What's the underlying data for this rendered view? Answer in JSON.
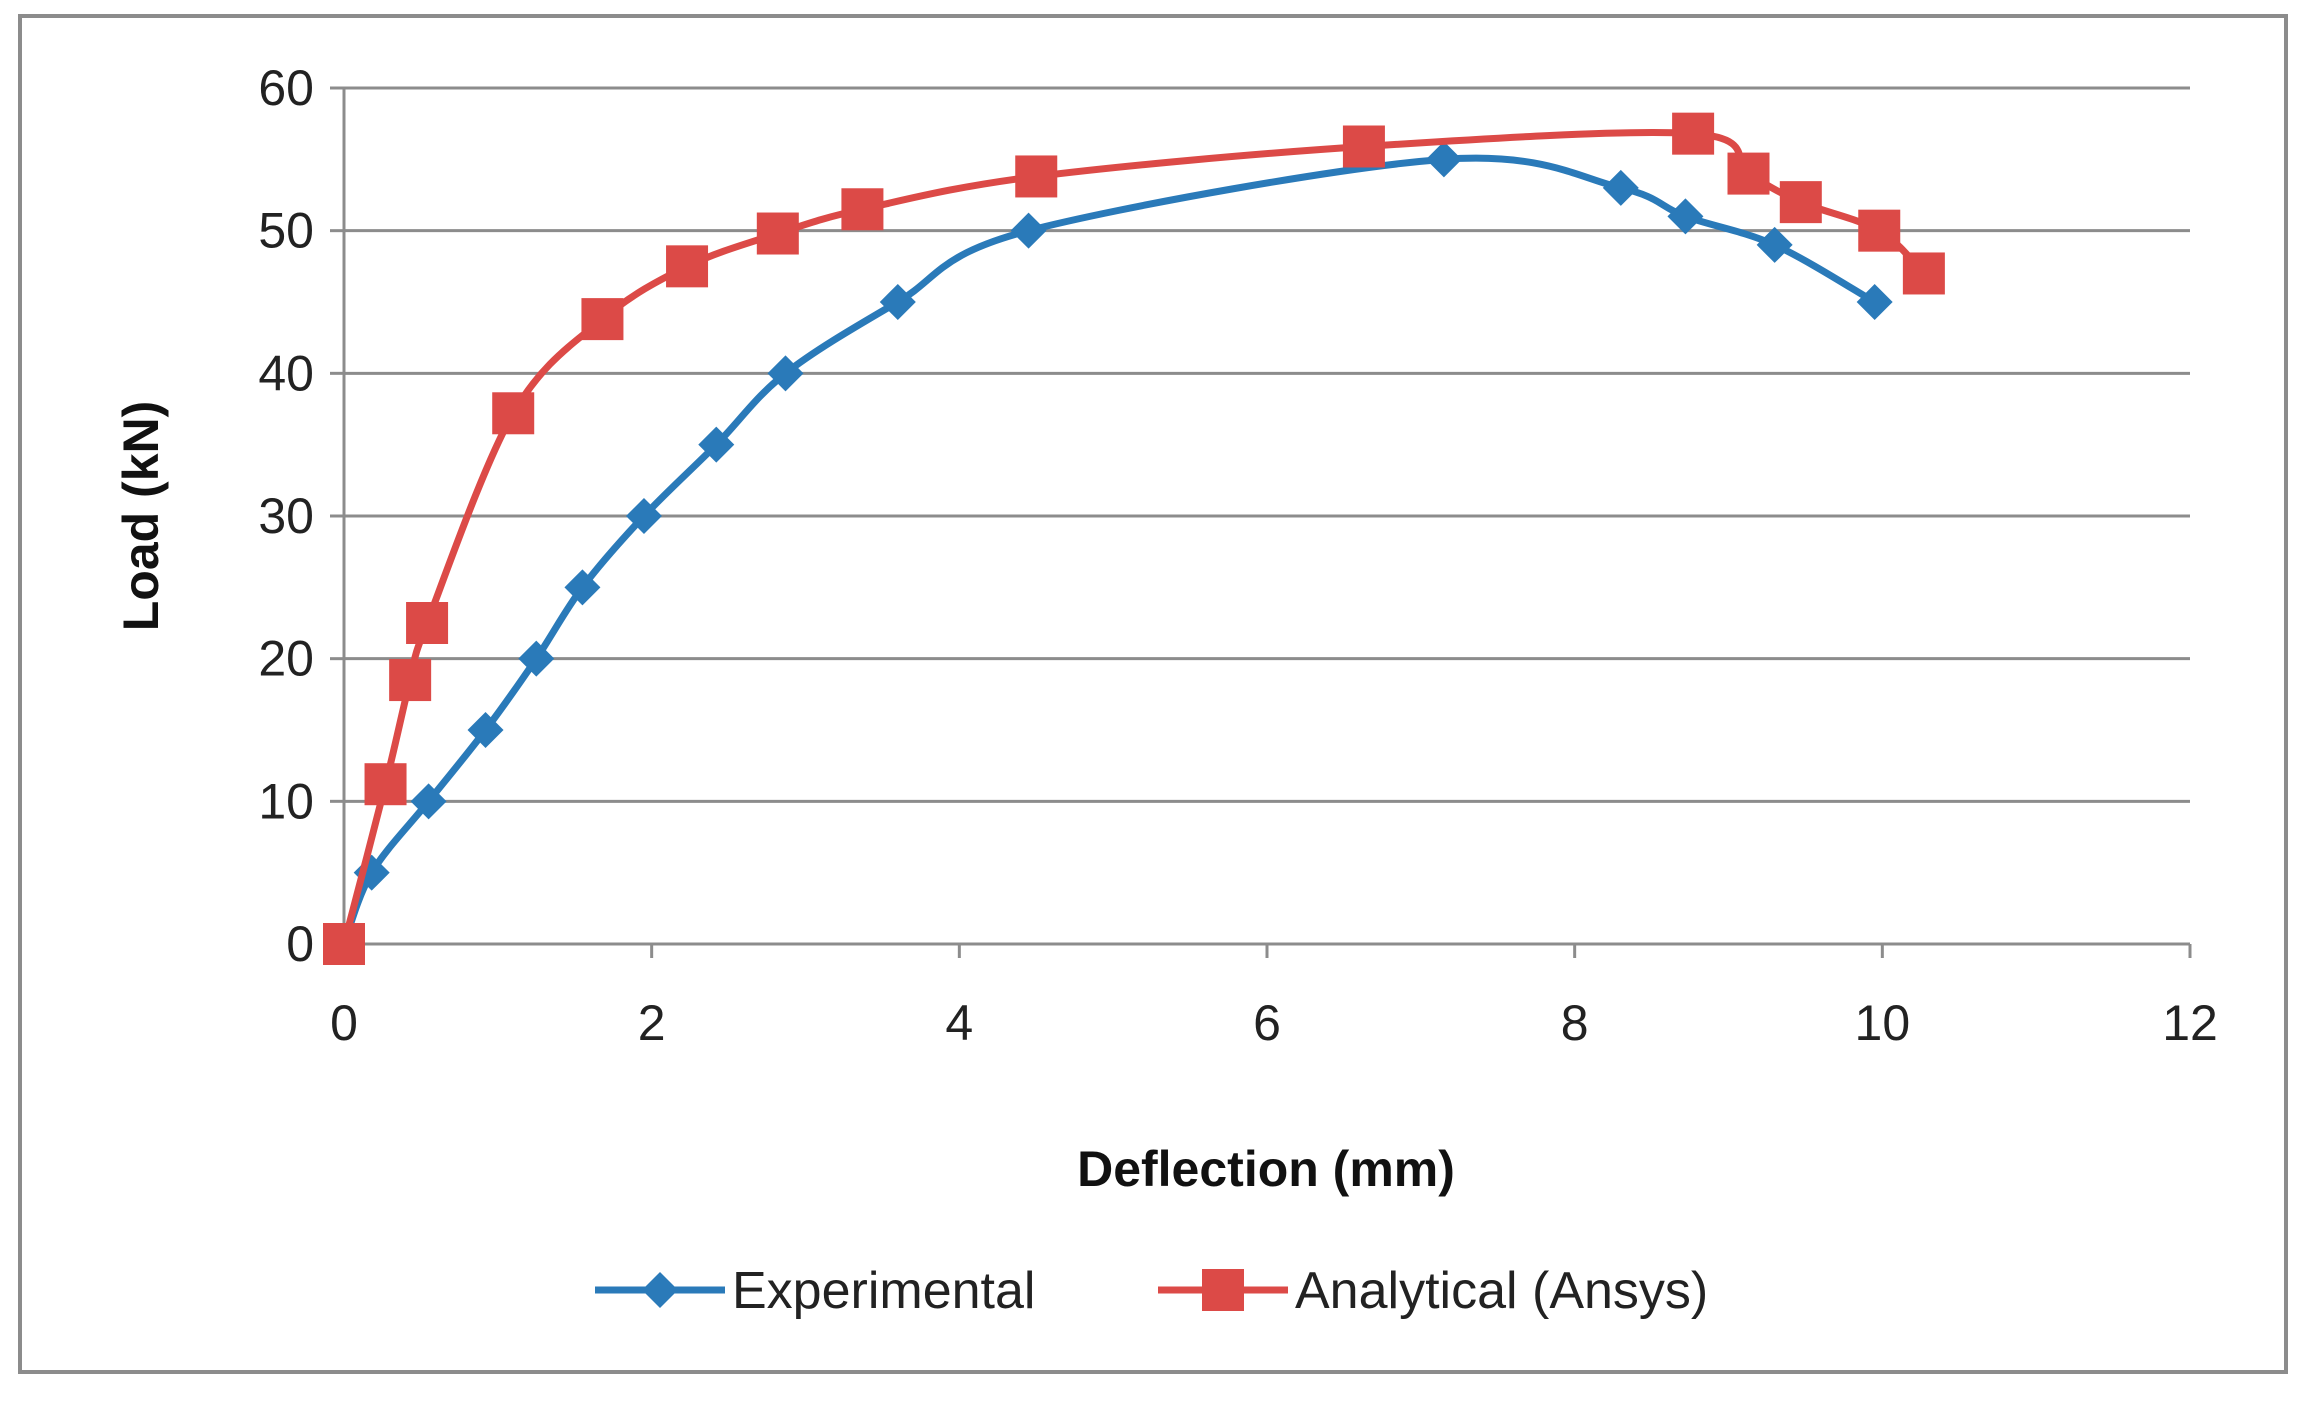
{
  "chart_data": {
    "type": "line",
    "title": "",
    "xlabel": "Deflection (mm)",
    "ylabel": "Load (kN)",
    "xlim": [
      0,
      12
    ],
    "ylim": [
      0,
      60
    ],
    "xticks": [
      "0",
      "2",
      "4",
      "6",
      "8",
      "10",
      "12"
    ],
    "yticks": [
      "0",
      "10",
      "20",
      "30",
      "40",
      "50",
      "60"
    ],
    "grid": "horizontal",
    "legend_position": "bottom",
    "series": [
      {
        "name": "Experimental",
        "color": "#2a7ab9",
        "marker": "diamond",
        "x": [
          0,
          0.18,
          0.55,
          0.92,
          1.25,
          1.55,
          1.95,
          2.42,
          2.87,
          3.6,
          4.45,
          7.15,
          8.3,
          8.72,
          9.3,
          9.95
        ],
        "y": [
          0,
          5,
          10,
          15,
          20,
          25,
          30,
          35,
          40,
          45,
          50,
          55,
          53,
          51,
          49,
          45
        ]
      },
      {
        "name": "Analytical (Ansys)",
        "color": "#dc4a47",
        "marker": "square",
        "x": [
          0,
          0.27,
          0.43,
          0.54,
          1.1,
          1.68,
          2.23,
          2.82,
          3.37,
          4.5,
          6.63,
          8.77,
          9.13,
          9.47,
          9.98,
          10.27
        ],
        "y": [
          0,
          11.2,
          18.5,
          22.5,
          37.2,
          43.8,
          47.5,
          49.8,
          51.5,
          53.8,
          55.9,
          56.8,
          54,
          52,
          50,
          47
        ]
      }
    ]
  }
}
